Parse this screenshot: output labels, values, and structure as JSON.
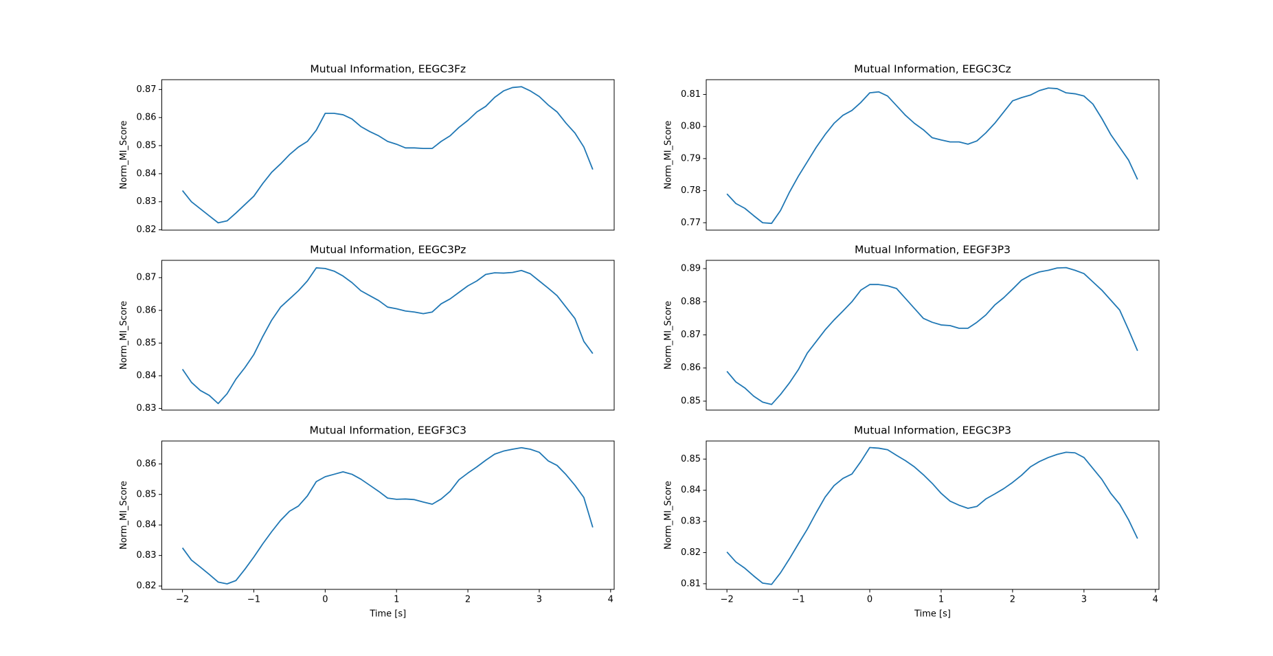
{
  "chart_data": [
    {
      "type": "line",
      "title": "Mutual Information, EEGC3Fz",
      "ylabel": "Norm_MI_Score",
      "color": "#1f77b4",
      "x": [
        -2,
        -1.875,
        -1.75,
        -1.625,
        -1.5,
        -1.375,
        -1.25,
        -1.125,
        -1,
        -0.875,
        -0.75,
        -0.625,
        -0.5,
        -0.375,
        -0.25,
        -0.125,
        0,
        0.125,
        0.25,
        0.375,
        0.5,
        0.625,
        0.75,
        0.875,
        1,
        1.125,
        1.25,
        1.375,
        1.5,
        1.625,
        1.75,
        1.875,
        2,
        2.125,
        2.25,
        2.375,
        2.5,
        2.625,
        2.75,
        2.875,
        3,
        3.125,
        3.25,
        3.375,
        3.5,
        3.625,
        3.75
      ],
      "values": [
        0.834,
        0.83,
        0.8275,
        0.825,
        0.8225,
        0.8232,
        0.826,
        0.829,
        0.832,
        0.8365,
        0.8405,
        0.8435,
        0.8468,
        0.8495,
        0.8515,
        0.8555,
        0.8615,
        0.8615,
        0.861,
        0.8595,
        0.8568,
        0.855,
        0.8535,
        0.8515,
        0.8505,
        0.8492,
        0.8492,
        0.849,
        0.849,
        0.8515,
        0.8535,
        0.8565,
        0.859,
        0.862,
        0.864,
        0.8672,
        0.8695,
        0.8707,
        0.871,
        0.8695,
        0.8675,
        0.8645,
        0.862,
        0.858,
        0.8545,
        0.8495,
        0.8415
      ],
      "xlim": [
        -2.29,
        4.05
      ],
      "ylim": [
        0.8199,
        0.8735
      ],
      "yticks": [
        0.82,
        0.83,
        0.84,
        0.85,
        0.86,
        0.87
      ]
    },
    {
      "type": "line",
      "title": "Mutual Information, EEGC3Cz",
      "ylabel": "Norm_MI_Score",
      "color": "#1f77b4",
      "x": [
        -2,
        -1.875,
        -1.75,
        -1.625,
        -1.5,
        -1.375,
        -1.25,
        -1.125,
        -1,
        -0.875,
        -0.75,
        -0.625,
        -0.5,
        -0.375,
        -0.25,
        -0.125,
        0,
        0.125,
        0.25,
        0.375,
        0.5,
        0.625,
        0.75,
        0.875,
        1,
        1.125,
        1.25,
        1.375,
        1.5,
        1.625,
        1.75,
        1.875,
        2,
        2.125,
        2.25,
        2.375,
        2.5,
        2.625,
        2.75,
        2.875,
        3,
        3.125,
        3.25,
        3.375,
        3.5,
        3.625,
        3.75
      ],
      "values": [
        0.779,
        0.776,
        0.7745,
        0.7722,
        0.77,
        0.7698,
        0.7738,
        0.7795,
        0.7845,
        0.789,
        0.7935,
        0.7975,
        0.801,
        0.8035,
        0.805,
        0.8075,
        0.8105,
        0.8108,
        0.8095,
        0.8065,
        0.8035,
        0.801,
        0.799,
        0.7965,
        0.7958,
        0.7952,
        0.7952,
        0.7945,
        0.7955,
        0.798,
        0.801,
        0.8045,
        0.808,
        0.809,
        0.8098,
        0.8112,
        0.812,
        0.8118,
        0.8105,
        0.8102,
        0.8095,
        0.807,
        0.8025,
        0.7975,
        0.7935,
        0.7895,
        0.7835
      ],
      "xlim": [
        -2.29,
        4.05
      ],
      "ylim": [
        0.7677,
        0.8146
      ],
      "yticks": [
        0.77,
        0.78,
        0.79,
        {
          "value": 0.8,
          "label": "0.80"
        },
        0.81
      ]
    },
    {
      "type": "line",
      "title": "Mutual Information, EEGC3Pz",
      "ylabel": "Norm_MI_Score",
      "color": "#1f77b4",
      "x": [
        -2,
        -1.875,
        -1.75,
        -1.625,
        -1.5,
        -1.375,
        -1.25,
        -1.125,
        -1,
        -0.875,
        -0.75,
        -0.625,
        -0.5,
        -0.375,
        -0.25,
        -0.125,
        0,
        0.125,
        0.25,
        0.375,
        0.5,
        0.625,
        0.75,
        0.875,
        1,
        1.125,
        1.25,
        1.375,
        1.5,
        1.625,
        1.75,
        1.875,
        2,
        2.125,
        2.25,
        2.375,
        2.5,
        2.625,
        2.75,
        2.875,
        3,
        3.125,
        3.25,
        3.375,
        3.5,
        3.625,
        3.75
      ],
      "values": [
        0.842,
        0.838,
        0.8355,
        0.834,
        0.8315,
        0.8345,
        0.839,
        0.8425,
        0.8465,
        0.852,
        0.857,
        0.861,
        0.8635,
        0.866,
        0.869,
        0.873,
        0.8728,
        0.872,
        0.8705,
        0.8685,
        0.866,
        0.8645,
        0.863,
        0.861,
        0.8605,
        0.8598,
        0.8595,
        0.859,
        0.8595,
        0.862,
        0.8635,
        0.8655,
        0.8675,
        0.869,
        0.871,
        0.8715,
        0.8714,
        0.8716,
        0.8722,
        0.8712,
        0.869,
        0.8668,
        0.8645,
        0.861,
        0.8575,
        0.8505,
        0.8468
      ],
      "xlim": [
        -2.29,
        4.05
      ],
      "ylim": [
        0.8295,
        0.8753
      ],
      "yticks": [
        0.83,
        0.84,
        0.85,
        0.86,
        0.87
      ]
    },
    {
      "type": "line",
      "title": "Mutual Information, EEGF3P3",
      "ylabel": "Norm_MI_Score",
      "color": "#1f77b4",
      "x": [
        -2,
        -1.875,
        -1.75,
        -1.625,
        -1.5,
        -1.375,
        -1.25,
        -1.125,
        -1,
        -0.875,
        -0.75,
        -0.625,
        -0.5,
        -0.375,
        -0.25,
        -0.125,
        0,
        0.125,
        0.25,
        0.375,
        0.5,
        0.625,
        0.75,
        0.875,
        1,
        1.125,
        1.25,
        1.375,
        1.5,
        1.625,
        1.75,
        1.875,
        2,
        2.125,
        2.25,
        2.375,
        2.5,
        2.625,
        2.75,
        2.875,
        3,
        3.125,
        3.25,
        3.375,
        3.5,
        3.625,
        3.75
      ],
      "values": [
        0.859,
        0.8558,
        0.854,
        0.8515,
        0.8497,
        0.849,
        0.852,
        0.8555,
        0.8595,
        0.8645,
        0.868,
        0.8715,
        0.8745,
        0.8772,
        0.88,
        0.8835,
        0.8852,
        0.8852,
        0.8848,
        0.884,
        0.881,
        0.878,
        0.875,
        0.8738,
        0.873,
        0.8728,
        0.872,
        0.872,
        0.8738,
        0.876,
        0.879,
        0.8812,
        0.8838,
        0.8865,
        0.888,
        0.889,
        0.8895,
        0.8902,
        0.8903,
        0.8895,
        0.8885,
        0.886,
        0.8835,
        0.8805,
        0.8775,
        0.8715,
        0.8652
      ],
      "xlim": [
        -2.29,
        4.05
      ],
      "ylim": [
        0.8473,
        0.8925
      ],
      "yticks": [
        0.85,
        0.86,
        0.87,
        0.88,
        0.89
      ]
    },
    {
      "type": "line",
      "title": "Mutual Information, EEGF3C3",
      "ylabel": "Norm_MI_Score",
      "xlabel": "Time [s]",
      "color": "#1f77b4",
      "x": [
        -2,
        -1.875,
        -1.75,
        -1.625,
        -1.5,
        -1.375,
        -1.25,
        -1.125,
        -1,
        -0.875,
        -0.75,
        -0.625,
        -0.5,
        -0.375,
        -0.25,
        -0.125,
        0,
        0.125,
        0.25,
        0.375,
        0.5,
        0.625,
        0.75,
        0.875,
        1,
        1.125,
        1.25,
        1.375,
        1.5,
        1.625,
        1.75,
        1.875,
        2,
        2.125,
        2.25,
        2.375,
        2.5,
        2.625,
        2.75,
        2.875,
        3,
        3.125,
        3.25,
        3.375,
        3.5,
        3.625,
        3.75
      ],
      "values": [
        0.8325,
        0.8285,
        0.8262,
        0.8238,
        0.8213,
        0.8207,
        0.8218,
        0.8255,
        0.8295,
        0.8338,
        0.8378,
        0.8415,
        0.8445,
        0.8462,
        0.8495,
        0.8542,
        0.8558,
        0.8566,
        0.8574,
        0.8566,
        0.855,
        0.853,
        0.851,
        0.8488,
        0.8484,
        0.8485,
        0.8483,
        0.8475,
        0.8468,
        0.8485,
        0.851,
        0.8548,
        0.857,
        0.859,
        0.8612,
        0.8632,
        0.8642,
        0.8648,
        0.8653,
        0.8648,
        0.8638,
        0.861,
        0.8595,
        0.8565,
        0.853,
        0.849,
        0.8392
      ],
      "xlim": [
        -2.29,
        4.05
      ],
      "ylim": [
        0.8189,
        0.8675
      ],
      "yticks": [
        0.82,
        0.83,
        0.84,
        0.85,
        0.86
      ],
      "xticks": [
        {
          "value": -2,
          "label": "−2"
        },
        {
          "value": -1,
          "label": "−1"
        },
        0,
        1,
        2,
        3,
        4
      ]
    },
    {
      "type": "line",
      "title": "Mutual Information, EEGC3P3",
      "ylabel": "Norm_MI_Score",
      "xlabel": "Time [s]",
      "color": "#1f77b4",
      "x": [
        -2,
        -1.875,
        -1.75,
        -1.625,
        -1.5,
        -1.375,
        -1.25,
        -1.125,
        -1,
        -0.875,
        -0.75,
        -0.625,
        -0.5,
        -0.375,
        -0.25,
        -0.125,
        0,
        0.125,
        0.25,
        0.375,
        0.5,
        0.625,
        0.75,
        0.875,
        1,
        1.125,
        1.25,
        1.375,
        1.5,
        1.625,
        1.75,
        1.875,
        2,
        2.125,
        2.25,
        2.375,
        2.5,
        2.625,
        2.75,
        2.875,
        3,
        3.125,
        3.25,
        3.375,
        3.5,
        3.625,
        3.75
      ],
      "values": [
        0.8202,
        0.817,
        0.815,
        0.8125,
        0.8102,
        0.8098,
        0.8135,
        0.818,
        0.8228,
        0.8275,
        0.8328,
        0.8378,
        0.8415,
        0.8438,
        0.8452,
        0.8492,
        0.8537,
        0.8535,
        0.853,
        0.8512,
        0.8495,
        0.8475,
        0.845,
        0.8422,
        0.839,
        0.8365,
        0.8352,
        0.8342,
        0.8348,
        0.8372,
        0.8388,
        0.8405,
        0.8425,
        0.8448,
        0.8475,
        0.8492,
        0.8505,
        0.8515,
        0.8522,
        0.852,
        0.8505,
        0.847,
        0.8435,
        0.839,
        0.8355,
        0.8305,
        0.8245
      ],
      "xlim": [
        -2.29,
        4.05
      ],
      "ylim": [
        0.8082,
        0.8558
      ],
      "yticks": [
        0.81,
        0.82,
        0.83,
        0.84,
        0.85
      ],
      "xticks": [
        {
          "value": -2,
          "label": "−2"
        },
        {
          "value": -1,
          "label": "−1"
        },
        0,
        1,
        2,
        3,
        4
      ]
    }
  ]
}
